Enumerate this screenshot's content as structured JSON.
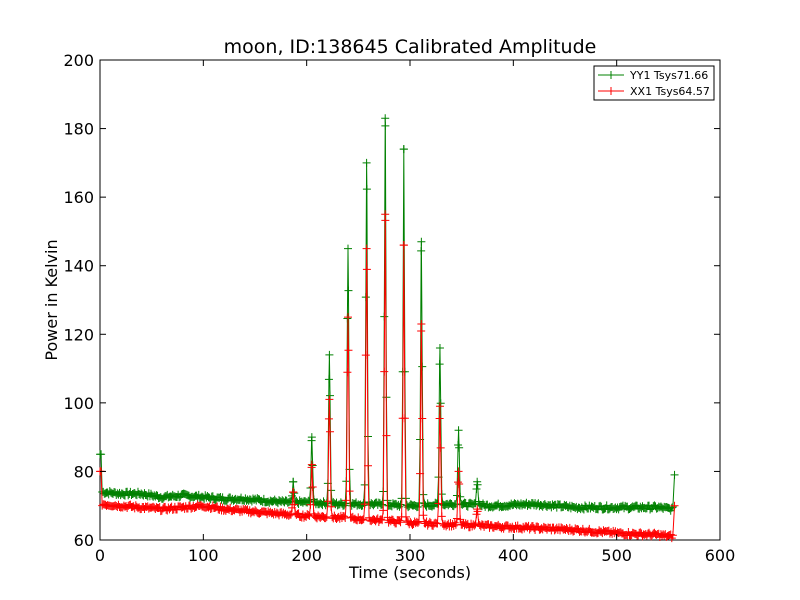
{
  "chart_data": {
    "type": "line",
    "title": "moon, ID:138645 Calibrated Amplitude",
    "xlabel": "Time (seconds)",
    "ylabel": "Power in Kelvin",
    "xlim": [
      0,
      600
    ],
    "ylim": [
      60,
      200
    ],
    "xticks": [
      "0",
      "100",
      "200",
      "300",
      "400",
      "500",
      "600"
    ],
    "yticks": [
      "60",
      "80",
      "100",
      "120",
      "140",
      "160",
      "180",
      "200"
    ],
    "grid": false,
    "legend_position": "top-right",
    "series": [
      {
        "name": "YY1 Tsys71.66",
        "color": "#008000",
        "baseline": [
          [
            0,
            85
          ],
          [
            2,
            74
          ],
          [
            20,
            73.5
          ],
          [
            40,
            73.5
          ],
          [
            60,
            72.5
          ],
          [
            80,
            73
          ],
          [
            100,
            72.5
          ],
          [
            120,
            72
          ],
          [
            140,
            72
          ],
          [
            160,
            71.5
          ],
          [
            180,
            71
          ],
          [
            200,
            71
          ],
          [
            230,
            70.5
          ],
          [
            260,
            70.5
          ],
          [
            300,
            70
          ],
          [
            340,
            70.5
          ],
          [
            380,
            70
          ],
          [
            420,
            70.5
          ],
          [
            460,
            69.5
          ],
          [
            500,
            69.5
          ],
          [
            540,
            69.5
          ],
          [
            555,
            69
          ]
        ],
        "end_value": 79,
        "peaks": [
          [
            187,
            77
          ],
          [
            205,
            90
          ],
          [
            222,
            114
          ],
          [
            240,
            145
          ],
          [
            258,
            170
          ],
          [
            276,
            183
          ],
          [
            294,
            174
          ],
          [
            311,
            147
          ],
          [
            329,
            116
          ],
          [
            347,
            92
          ],
          [
            365,
            77
          ]
        ]
      },
      {
        "name": "XX1 Tsys64.57",
        "color": "#ff0000",
        "baseline": [
          [
            0,
            80
          ],
          [
            2,
            70.5
          ],
          [
            20,
            70
          ],
          [
            40,
            69.5
          ],
          [
            60,
            69
          ],
          [
            80,
            69.5
          ],
          [
            100,
            70
          ],
          [
            120,
            69
          ],
          [
            140,
            68.5
          ],
          [
            160,
            68
          ],
          [
            180,
            67.5
          ],
          [
            200,
            67
          ],
          [
            230,
            66.5
          ],
          [
            260,
            66
          ],
          [
            300,
            65
          ],
          [
            340,
            64.5
          ],
          [
            380,
            64
          ],
          [
            420,
            63.5
          ],
          [
            460,
            63
          ],
          [
            500,
            62
          ],
          [
            540,
            61.5
          ],
          [
            555,
            61
          ]
        ],
        "end_value": 70,
        "peaks": [
          [
            187,
            74
          ],
          [
            205,
            82
          ],
          [
            222,
            101
          ],
          [
            240,
            125
          ],
          [
            258,
            145
          ],
          [
            276,
            155
          ],
          [
            294,
            146
          ],
          [
            311,
            123
          ],
          [
            329,
            99
          ],
          [
            347,
            80
          ],
          [
            365,
            69
          ]
        ]
      }
    ]
  }
}
